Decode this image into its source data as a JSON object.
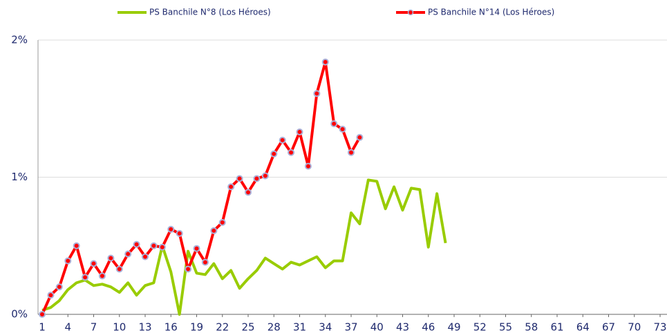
{
  "chart_data": {
    "type": "line",
    "x": [
      1,
      2,
      3,
      4,
      5,
      6,
      7,
      8,
      9,
      10,
      11,
      12,
      13,
      14,
      15,
      16,
      17,
      18,
      19,
      20,
      21,
      22,
      23,
      24,
      25,
      26,
      27,
      28,
      29,
      30,
      31,
      32,
      33,
      34,
      35,
      36,
      37,
      38,
      39,
      40,
      41,
      42,
      43,
      44,
      45,
      46,
      47,
      48
    ],
    "series": [
      {
        "name": "PS Banchile N°8 (Los Héroes)",
        "color": "#99cc00",
        "marker": false,
        "values": [
          0.03,
          0.05,
          0.1,
          0.18,
          0.23,
          0.25,
          0.21,
          0.22,
          0.2,
          0.16,
          0.23,
          0.14,
          0.21,
          0.23,
          0.5,
          0.31,
          0.0,
          0.46,
          0.3,
          0.29,
          0.37,
          0.26,
          0.32,
          0.19,
          0.26,
          0.32,
          0.41,
          0.37,
          0.33,
          0.38,
          0.36,
          0.39,
          0.42,
          0.34,
          0.39,
          0.39,
          0.74,
          0.66,
          0.98,
          0.97,
          0.77,
          0.93,
          0.76,
          0.92,
          0.91,
          0.49,
          0.88,
          0.52
        ]
      },
      {
        "name": "PS Banchile N°14 (Los Héroes)",
        "color": "#ff0000",
        "marker": true,
        "values": [
          0.0,
          0.14,
          0.2,
          0.39,
          0.5,
          0.27,
          0.37,
          0.28,
          0.41,
          0.33,
          0.44,
          0.51,
          0.42,
          0.5,
          0.49,
          0.62,
          0.59,
          0.33,
          0.48,
          0.38,
          0.61,
          0.67,
          0.93,
          0.99,
          0.89,
          0.99,
          1.01,
          1.17,
          1.27,
          1.18,
          1.33,
          1.08,
          1.61,
          1.84,
          1.39,
          1.35,
          1.18,
          1.29,
          null,
          null,
          null,
          null,
          null,
          null,
          null,
          null,
          null,
          null
        ]
      }
    ],
    "xlim": [
      1,
      73
    ],
    "xticks": [
      1,
      4,
      7,
      10,
      13,
      16,
      19,
      22,
      25,
      28,
      31,
      34,
      37,
      40,
      43,
      46,
      49,
      52,
      55,
      58,
      61,
      64,
      67,
      70,
      73
    ],
    "ylim": [
      0,
      2
    ],
    "yticks": [
      {
        "value": 0,
        "label": "0%"
      },
      {
        "value": 1,
        "label": "1%"
      },
      {
        "value": 2,
        "label": "2%"
      }
    ],
    "grid": true,
    "legend": "top"
  }
}
